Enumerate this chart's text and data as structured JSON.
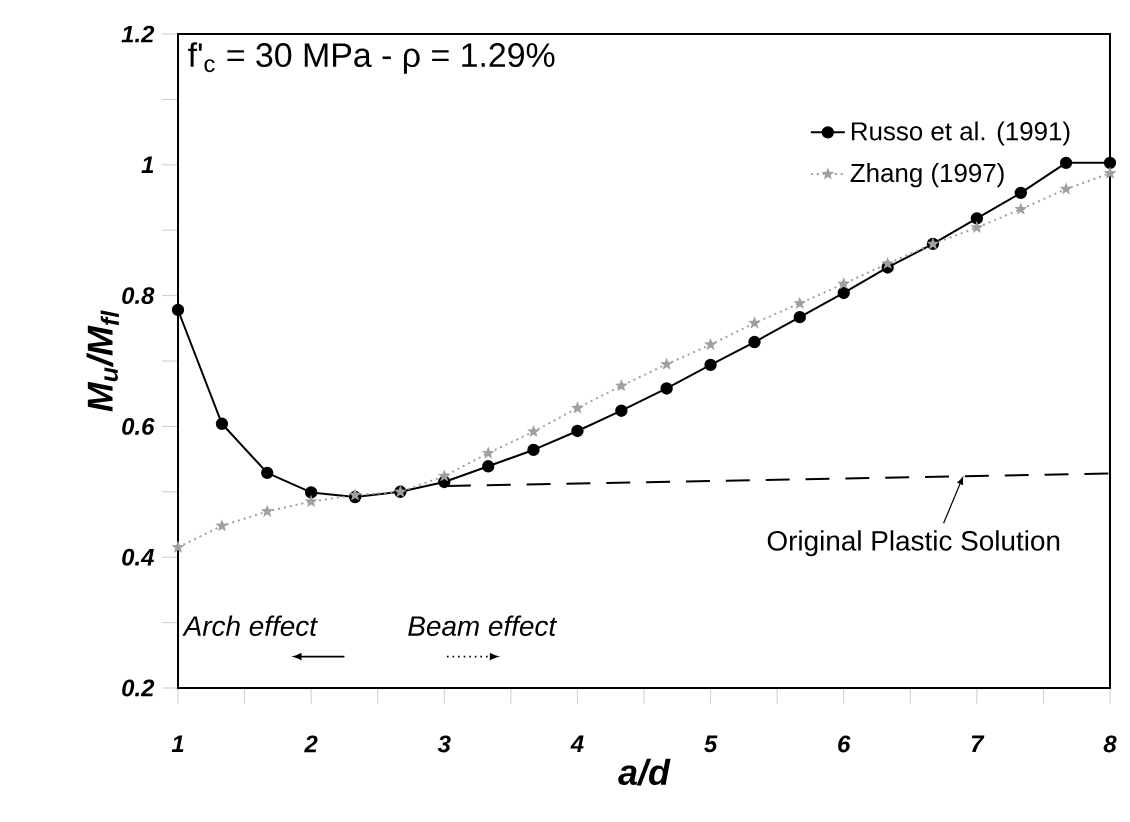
{
  "chart_data": {
    "type": "line",
    "title": "f'$_{c}$ = 30 MPa - ρ = 1.29%",
    "xlabel": "a/d",
    "ylabel": "M$_{u}$/M$_{fl}$",
    "annotations": [
      "Arch effect",
      "Beam effect",
      {
        "text": "Original Plastic Solution",
        "x": 6.9,
        "y": 0.525
      }
    ],
    "xlim": [
      1,
      8
    ],
    "xticks": [
      1,
      2,
      3,
      4,
      5,
      6,
      7,
      8
    ],
    "ylim": [
      0.2,
      1.2
    ],
    "yticks": [
      0.2,
      0.4,
      0.6,
      0.8,
      1,
      1.2
    ],
    "grid": false,
    "legend": "top right",
    "series": [
      {
        "name": "Russo et al. (1991)",
        "color": "#000000",
        "marker": "circle",
        "line_style": "solid",
        "x": [
          1,
          1.33,
          1.67,
          2,
          2.33,
          2.67,
          3,
          3.33,
          3.67,
          4,
          4.33,
          4.67,
          5,
          5.33,
          5.67,
          6,
          6.33,
          6.67,
          7,
          7.33,
          7.67,
          8
        ],
        "values": [
          0.778,
          0.604,
          0.529,
          0.499,
          0.492,
          0.5,
          0.515,
          0.539,
          0.564,
          0.593,
          0.624,
          0.658,
          0.694,
          0.729,
          0.767,
          0.804,
          0.843,
          0.879,
          0.918,
          0.957,
          1.003,
          1.003
        ]
      },
      {
        "name": "Zhang (1997)",
        "color": "#a0a0a0",
        "marker": "star",
        "line_style": "dotted",
        "x": [
          1,
          1.33,
          1.67,
          2,
          2.33,
          2.67,
          3,
          3.33,
          3.67,
          4,
          4.33,
          4.67,
          5,
          5.33,
          5.67,
          6,
          6.33,
          6.67,
          7,
          7.33,
          7.67,
          8
        ],
        "values": [
          0.415,
          0.448,
          0.47,
          0.485,
          0.495,
          0.5,
          0.524,
          0.559,
          0.592,
          0.628,
          0.662,
          0.695,
          0.725,
          0.758,
          0.788,
          0.818,
          0.849,
          0.879,
          0.904,
          0.932,
          0.963,
          0.987
        ]
      },
      {
        "color": "#000000",
        "marker": "none",
        "line_style": "dashed",
        "x": [
          3.02,
          8
        ],
        "values": [
          0.509,
          0.528
        ]
      }
    ]
  }
}
